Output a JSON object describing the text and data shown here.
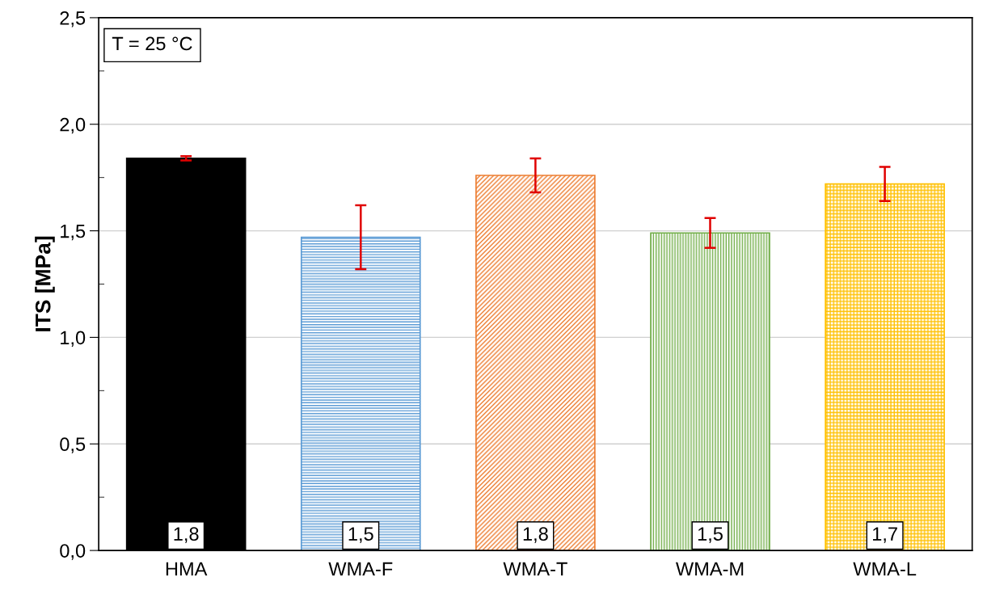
{
  "chart_data": {
    "type": "bar",
    "ylabel": "ITS [MPa]",
    "categories": [
      "HMA",
      "WMA-F",
      "WMA-T",
      "WMA-M",
      "WMA-L"
    ],
    "values": [
      1.84,
      1.47,
      1.76,
      1.49,
      1.72
    ],
    "colors": [
      "#000000",
      "#5b9bd5",
      "#ed7d31",
      "#70ad47",
      "#ffc000"
    ],
    "errors": [
      0.01,
      0.15,
      0.08,
      0.07,
      0.08
    ],
    "value_labels": [
      "1,8",
      "1,5",
      "1,8",
      "1,5",
      "1,7"
    ],
    "ylim": [
      0,
      2.5
    ],
    "yticks": [
      {
        "value": 0,
        "label": "0,0"
      },
      {
        "value": 0.5,
        "label": "0,5"
      },
      {
        "value": 1,
        "label": "1,0"
      },
      {
        "value": 1.5,
        "label": "1,5"
      },
      {
        "value": 2,
        "label": "2,0"
      },
      {
        "value": 2.5,
        "label": "2,5"
      }
    ],
    "grid": "y",
    "annotations": [
      "T = 25 °C"
    ]
  }
}
